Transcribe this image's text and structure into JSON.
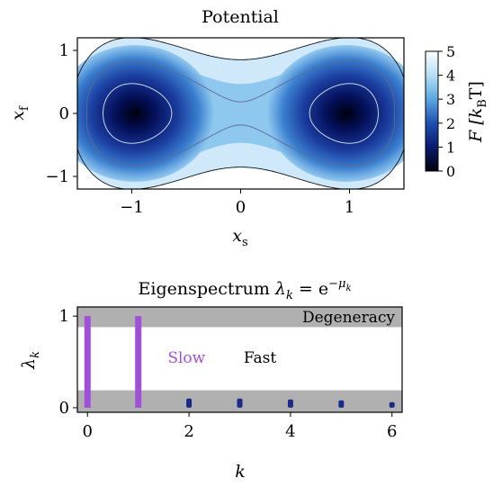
{
  "chart_data": [
    {
      "type": "heatmap",
      "title": "Potential",
      "xlabel": "x",
      "xlabel_sub": "s",
      "ylabel": "x",
      "ylabel_sub": "f",
      "xlim": [
        -1.5,
        1.5
      ],
      "ylim": [
        -1.2,
        1.2
      ],
      "xticks": [
        -1,
        0,
        1
      ],
      "xtick_labels": [
        "−1",
        "0",
        "1"
      ],
      "yticks": [
        -1,
        0,
        1
      ],
      "ytick_labels": [
        "−1",
        "0",
        "1"
      ],
      "colorbar": {
        "label": "F [k",
        "label_sub": "B",
        "label_end": "T]",
        "range": [
          0,
          5
        ],
        "ticks": [
          0,
          1,
          2,
          3,
          4,
          5
        ],
        "tick_labels": [
          "0",
          "1",
          "2",
          "3",
          "4",
          "5"
        ],
        "colors": [
          "#000010",
          "#0a1a6e",
          "#1f4fb0",
          "#5aa7df",
          "#b6def6",
          "#ffffff"
        ]
      },
      "wells": [
        -0.97,
        0.97
      ],
      "contour_levels": [
        1,
        2.6,
        4
      ]
    },
    {
      "type": "bar",
      "title_prefix": "Eigenspectrum ",
      "title_math": "λ",
      "title_sub": "k",
      "title_eq": " = e",
      "title_sup": "−μ",
      "title_sup_sub": "k",
      "xlabel": "k",
      "ylabel": "λ",
      "ylabel_sub": "k",
      "xlim": [
        -0.2,
        6.2
      ],
      "ylim": [
        -0.05,
        1.1
      ],
      "xticks": [
        0,
        2,
        4,
        6
      ],
      "xtick_labels": [
        "0",
        "2",
        "4",
        "6"
      ],
      "yticks": [
        0,
        1
      ],
      "ytick_labels": [
        "0",
        "1"
      ],
      "categories": [
        0,
        1,
        2,
        3,
        4,
        5,
        6
      ],
      "values": [
        1.0,
        1.0,
        0.1,
        0.1,
        0.09,
        0.08,
        0.06
      ],
      "bar_colors": [
        "#a050d8",
        "#a050d8",
        "#1a2a8a",
        "#1a2a8a",
        "#1a2a8a",
        "#1a2a8a",
        "#1a2a8a"
      ],
      "bands": [
        {
          "range": [
            0.88,
            1.1
          ],
          "label": "Degeneracy"
        },
        {
          "range": [
            -0.05,
            0.19
          ],
          "label": ""
        }
      ],
      "annotations": [
        {
          "text": "Slow",
          "x": 1.95,
          "y": 0.55,
          "color": "#a050d8"
        },
        {
          "text": "Fast",
          "x": 3.4,
          "y": 0.55,
          "color": "#000000"
        }
      ]
    }
  ]
}
